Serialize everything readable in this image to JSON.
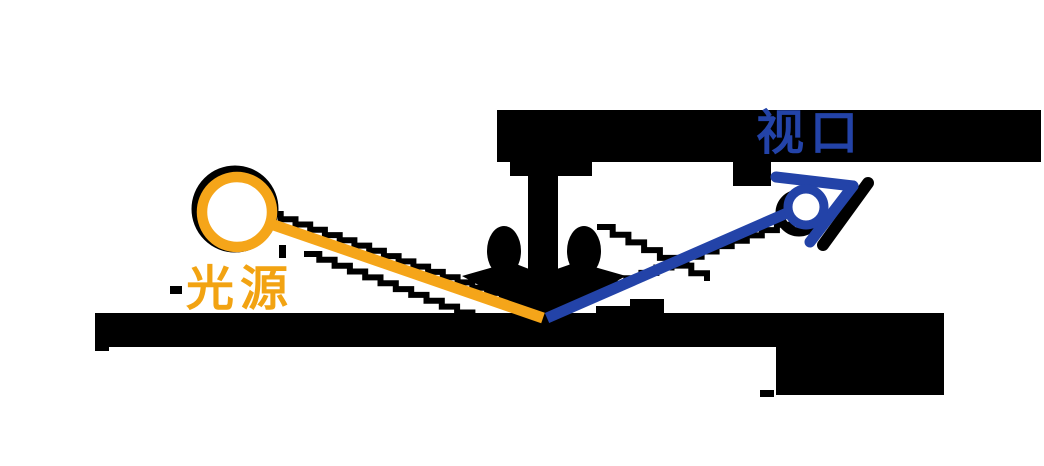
{
  "diagram": {
    "labels": {
      "light_source": "光源",
      "viewport": "视口"
    },
    "colors": {
      "ray_yellow": "#F5A519",
      "label_orange": "#F2A312",
      "ray_blue": "#2343A8",
      "label_blue": "#2343A8",
      "ink": "#000000",
      "background": "#FFFFFF"
    }
  }
}
